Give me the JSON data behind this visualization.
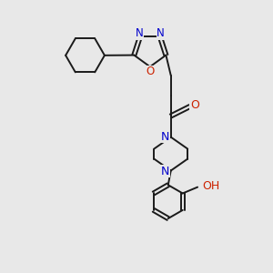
{
  "background_color": "#e8e8e8",
  "bond_color": "#1a1a1a",
  "N_color": "#0000cc",
  "O_color": "#cc2200",
  "figsize": [
    3.0,
    3.0
  ],
  "dpi": 100,
  "lw": 1.4,
  "xlim": [
    0,
    10
  ],
  "ylim": [
    0,
    10
  ]
}
